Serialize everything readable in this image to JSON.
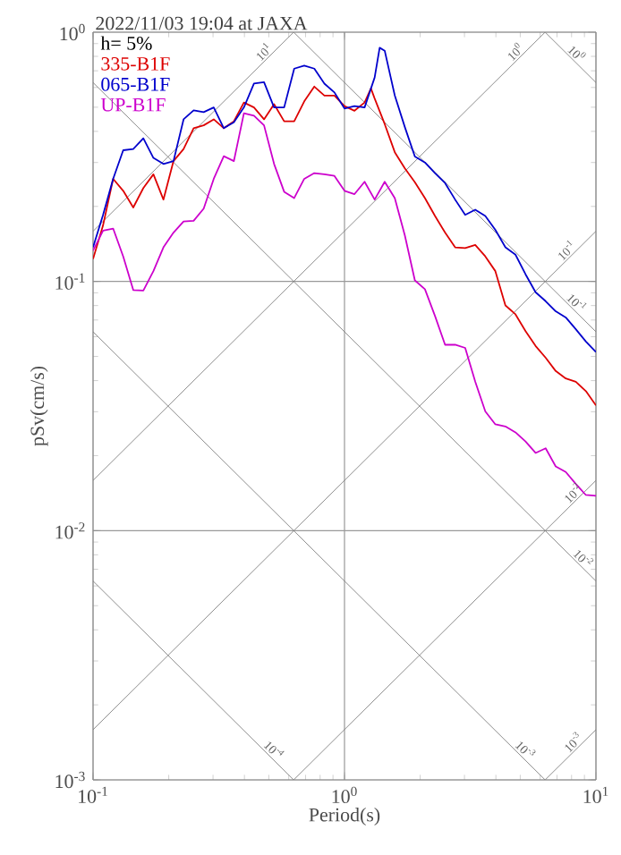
{
  "chart_data": {
    "type": "line",
    "title": "2022/11/03 19:04 at JAXA",
    "xlabel": "Period(s)",
    "ylabel": "pSv(cm/s)",
    "log": "xy",
    "grid": true,
    "legend": "top left",
    "xlim": [
      0.1,
      10
    ],
    "ylim": [
      0.001,
      1
    ],
    "xticks": [
      {
        "value": 0.1,
        "label": "10$^{-1}$"
      },
      {
        "value": 1,
        "label": "10$^{0}$"
      },
      {
        "value": 10,
        "label": "10$^{1}$"
      }
    ],
    "yticks": [
      {
        "value": 0.001,
        "label": "10$^{-3}$"
      },
      {
        "value": 0.01,
        "label": "10$^{-2}$"
      },
      {
        "value": 0.1,
        "label": "10$^{-1}$"
      },
      {
        "value": 1,
        "label": "10$^{0}$"
      }
    ],
    "series": [
      {
        "color": "#808080",
        "x": [
          0.1,
          0.628
        ],
        "values": [
          0.159,
          1
        ]
      },
      {
        "color": "#808080",
        "x": [
          0.1,
          6.28
        ],
        "values": [
          0.0159,
          1
        ]
      },
      {
        "color": "#808080",
        "x": [
          0.1,
          10
        ],
        "values": [
          0.00159,
          0.159
        ]
      },
      {
        "color": "#808080",
        "x": [
          0.628,
          10
        ],
        "values": [
          0.001,
          0.0159
        ]
      },
      {
        "color": "#808080",
        "x": [
          6.28,
          10
        ],
        "values": [
          0.001,
          0.00159
        ]
      },
      {
        "color": "#808080",
        "x": [
          6.28,
          10
        ],
        "values": [
          1,
          0.628
        ]
      },
      {
        "color": "#808080",
        "x": [
          0.628,
          10
        ],
        "values": [
          1,
          0.0628
        ]
      },
      {
        "color": "#808080",
        "x": [
          0.1,
          10
        ],
        "values": [
          0.628,
          0.00628
        ]
      },
      {
        "color": "#808080",
        "x": [
          0.1,
          6.28
        ],
        "values": [
          0.0628,
          0.001
        ]
      },
      {
        "color": "#808080",
        "x": [
          0.1,
          0.628
        ],
        "values": [
          0.00628,
          0.001
        ]
      },
      {
        "name": "335-B1F",
        "color": "#dd0000",
        "x": [
          0.1,
          0.1096,
          0.1202,
          0.1318,
          0.1445,
          0.1585,
          0.1738,
          0.1905,
          0.2089,
          0.2291,
          0.2512,
          0.2754,
          0.302,
          0.3311,
          0.3631,
          0.3981,
          0.4365,
          0.4786,
          0.5248,
          0.5754,
          0.631,
          0.6918,
          0.7586,
          0.8318,
          0.912,
          1,
          1.096,
          1.202,
          1.274,
          1.318,
          1.445,
          1.585,
          1.738,
          1.905,
          2.089,
          2.291,
          2.512,
          2.754,
          3.02,
          3.311,
          3.631,
          3.981,
          4.365,
          4.786,
          5.248,
          5.754,
          6.31,
          6.918,
          7.586,
          8.318,
          9.12,
          10
        ],
        "values": [
          0.123,
          0.168,
          0.258,
          0.231,
          0.198,
          0.237,
          0.269,
          0.213,
          0.304,
          0.34,
          0.412,
          0.423,
          0.447,
          0.412,
          0.439,
          0.522,
          0.499,
          0.447,
          0.514,
          0.439,
          0.439,
          0.528,
          0.605,
          0.557,
          0.557,
          0.505,
          0.484,
          0.522,
          0.595,
          0.542,
          0.428,
          0.33,
          0.284,
          0.25,
          0.216,
          0.183,
          0.157,
          0.137,
          0.136,
          0.14,
          0.126,
          0.11,
          0.0801,
          0.0738,
          0.0632,
          0.0551,
          0.0494,
          0.0437,
          0.0408,
          0.0396,
          0.0363,
          0.0318
        ]
      },
      {
        "name": "065-B1F",
        "color": "#0000cc",
        "x": [
          0.1,
          0.1096,
          0.1202,
          0.1318,
          0.1445,
          0.1585,
          0.1738,
          0.1905,
          0.2089,
          0.2291,
          0.2512,
          0.2754,
          0.302,
          0.3311,
          0.3631,
          0.3981,
          0.4365,
          0.4786,
          0.5248,
          0.5754,
          0.631,
          0.6918,
          0.7586,
          0.8318,
          0.912,
          1,
          1.096,
          1.202,
          1.318,
          1.38,
          1.445,
          1.585,
          1.738,
          1.905,
          2.089,
          2.291,
          2.512,
          2.754,
          3.02,
          3.311,
          3.631,
          3.981,
          4.365,
          4.786,
          5.248,
          5.754,
          6.31,
          6.918,
          7.586,
          8.318,
          9.12,
          10
        ],
        "values": [
          0.137,
          0.185,
          0.258,
          0.336,
          0.34,
          0.375,
          0.313,
          0.296,
          0.304,
          0.447,
          0.486,
          0.478,
          0.499,
          0.412,
          0.435,
          0.499,
          0.622,
          0.63,
          0.499,
          0.499,
          0.714,
          0.734,
          0.714,
          0.622,
          0.573,
          0.494,
          0.505,
          0.499,
          0.658,
          0.866,
          0.843,
          0.557,
          0.416,
          0.317,
          0.3,
          0.272,
          0.248,
          0.213,
          0.185,
          0.194,
          0.183,
          0.161,
          0.137,
          0.128,
          0.1068,
          0.0905,
          0.0833,
          0.0759,
          0.0717,
          0.0643,
          0.0574,
          0.0521
        ]
      },
      {
        "name": "UP-B1F",
        "color": "#cc00cc",
        "x": [
          0.1,
          0.1096,
          0.1202,
          0.1318,
          0.1445,
          0.1585,
          0.1738,
          0.1905,
          0.2089,
          0.2291,
          0.2512,
          0.2754,
          0.302,
          0.3311,
          0.3631,
          0.3981,
          0.4365,
          0.4786,
          0.5248,
          0.5754,
          0.631,
          0.6918,
          0.7586,
          0.8318,
          0.912,
          1,
          1.096,
          1.202,
          1.318,
          1.445,
          1.585,
          1.738,
          1.905,
          2.089,
          2.291,
          2.512,
          2.754,
          3.02,
          3.311,
          3.631,
          3.981,
          4.365,
          4.786,
          5.248,
          5.754,
          6.31,
          6.918,
          7.586,
          8.318,
          9.12,
          10
        ],
        "values": [
          0.133,
          0.16,
          0.163,
          0.126,
          0.0923,
          0.0919,
          0.11,
          0.137,
          0.157,
          0.174,
          0.175,
          0.196,
          0.258,
          0.318,
          0.304,
          0.473,
          0.462,
          0.423,
          0.296,
          0.229,
          0.216,
          0.258,
          0.272,
          0.269,
          0.265,
          0.231,
          0.224,
          0.251,
          0.213,
          0.251,
          0.216,
          0.153,
          0.101,
          0.0931,
          0.0726,
          0.0557,
          0.0557,
          0.0541,
          0.0396,
          0.0301,
          0.0267,
          0.0262,
          0.0248,
          0.0228,
          0.0205,
          0.0214,
          0.0181,
          0.0172,
          0.0154,
          0.0139,
          0.0138
        ]
      }
    ],
    "annotations": [
      "h= 5%",
      {
        "text": "10$^{1}$",
        "x": 0.5,
        "y": 0.796
      },
      {
        "text": "10$^{0}$",
        "x": 5,
        "y": 0.796
      },
      {
        "text": "10$^{0}$",
        "x": 8,
        "y": 0.785
      },
      {
        "text": "10$^{-1}$",
        "x": 8,
        "y": 0.127
      },
      {
        "text": "10$^{-1}$",
        "x": 8,
        "y": 0.0785
      },
      {
        "text": "10$^{-2}$",
        "x": 8.5,
        "y": 0.0135
      },
      {
        "text": "10$^{-2}$",
        "x": 8.5,
        "y": 0.00739
      },
      {
        "text": "10$^{-4}$",
        "x": 0.5,
        "y": 0.00126
      },
      {
        "text": "10$^{-3}$",
        "x": 5,
        "y": 0.00126
      },
      {
        "text": "10$^{-3}$",
        "x": 8.5,
        "y": 0.00135
      }
    ]
  }
}
